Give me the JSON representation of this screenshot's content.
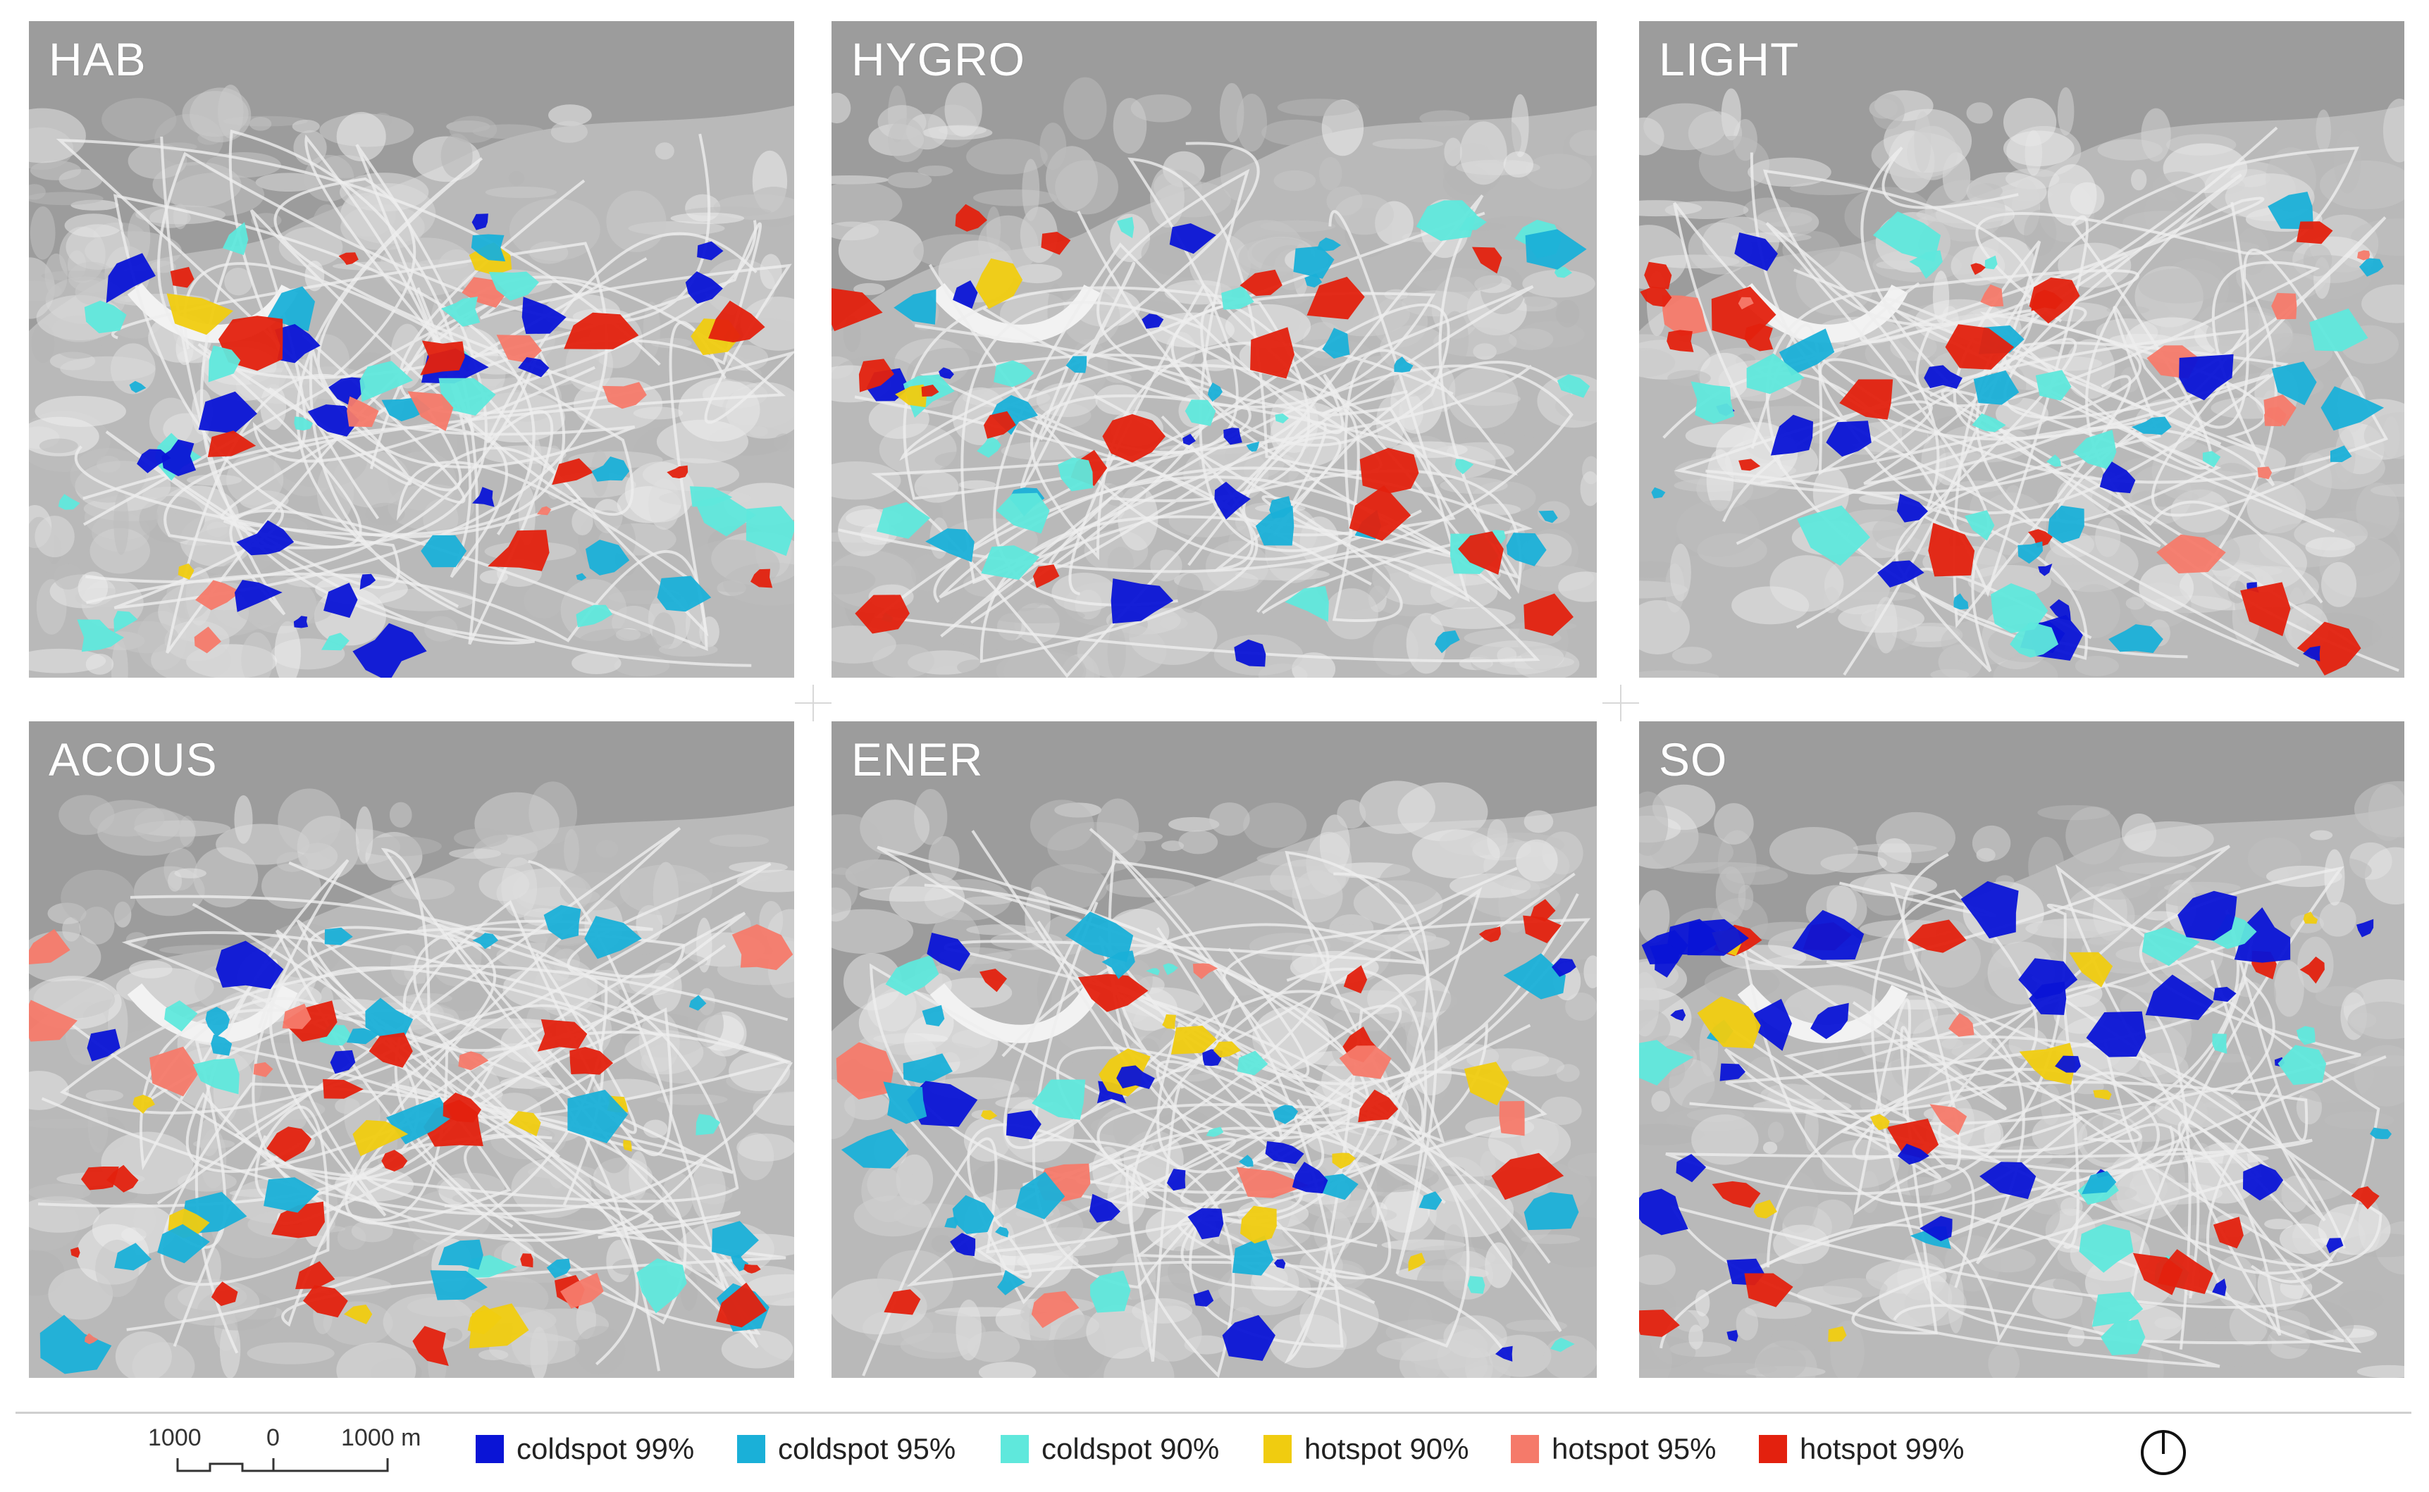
{
  "panels": [
    {
      "title": "HAB"
    },
    {
      "title": "HYGRO"
    },
    {
      "title": "LIGHT"
    },
    {
      "title": "ACOUS"
    },
    {
      "title": "ENER"
    },
    {
      "title": "SO"
    }
  ],
  "scale_bar": {
    "left_label": "1000",
    "center_label": "0",
    "right_label": "1000 m"
  },
  "legend": [
    {
      "label": "coldspot 99%",
      "color": "#0a14d6"
    },
    {
      "label": "coldspot 95%",
      "color": "#1ab0d8"
    },
    {
      "label": "coldspot 90%",
      "color": "#5fe8dc"
    },
    {
      "label": "hotspot 90%",
      "color": "#f0cc10"
    },
    {
      "label": "hotspot 95%",
      "color": "#f57a6a"
    },
    {
      "label": "hotspot 99%",
      "color": "#e3210e"
    }
  ],
  "north_arrow": {
    "icon": "north-arrow-icon"
  }
}
